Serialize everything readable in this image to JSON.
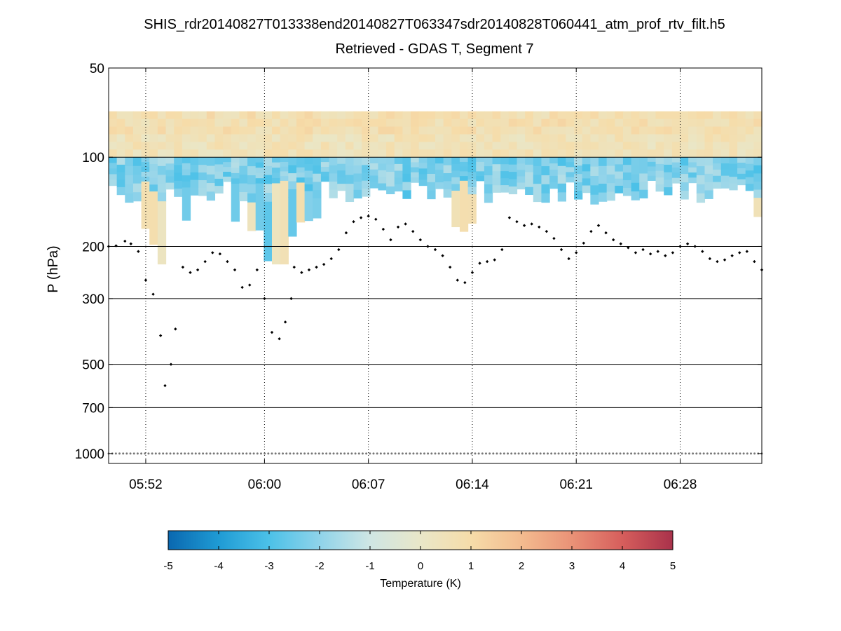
{
  "chart_data": {
    "type": "heatmap",
    "title": "SHIS_rdr20140827T013338end20140827T063347sdr20140828T060441_atm_prof_rtv_filt.h5",
    "subtitle": "Retrieved - GDAS T, Segment 7",
    "ylabel": "P (hPa)",
    "y_scale": "log",
    "y_reversed": true,
    "ylim_hpa": [
      50,
      1080
    ],
    "y_ticks": [
      50,
      100,
      200,
      300,
      500,
      700,
      1000
    ],
    "y_tick_labels": [
      "50",
      "100",
      "200",
      "300",
      "500",
      "700",
      "1000"
    ],
    "y_gridlines_hpa": [
      100,
      200,
      300,
      500,
      700
    ],
    "xlim_minutes": [
      49.5,
      93.5
    ],
    "x_ticks_minutes": [
      52,
      60,
      67,
      74,
      81,
      88
    ],
    "x_tick_labels": [
      "05:52",
      "06:00",
      "06:07",
      "06:14",
      "06:21",
      "06:28"
    ],
    "x_gridlines": "dotted vertical at each time tick",
    "colorbar": {
      "label": "Temperature (K)",
      "range": [
        -5,
        5
      ],
      "ticks": [
        -5,
        -4,
        -3,
        -2,
        -1,
        0,
        1,
        2,
        3,
        4,
        5
      ],
      "colors": [
        "#0a68b0",
        "#1f9bd4",
        "#4cc1e8",
        "#8fd3ea",
        "#cfe6e4",
        "#e9e7c8",
        "#f6dca9",
        "#f3bb8f",
        "#ea9277",
        "#d65e5c",
        "#a9324b"
      ]
    },
    "heatmap_layers": [
      {
        "name": "upper warm band",
        "p_top_hpa": 70,
        "p_bottom_hpa": 100,
        "typical_value_k": 0.6,
        "range_k": [
          0.2,
          1.3
        ]
      },
      {
        "name": "cold band",
        "p_top_hpa": 100,
        "p_bottom_hpa": 140,
        "typical_value_k": -2.2,
        "range_k": [
          -3.2,
          -1.0
        ]
      },
      {
        "name": "scattered lower cells",
        "p_top_hpa": 140,
        "p_bottom_hpa": 230,
        "typical_value_k": 0.5,
        "range_k": [
          -3.0,
          1.5
        ]
      }
    ],
    "series": [
      {
        "name": "tropopause pressure (black markers)",
        "x_minutes": [
          49.5,
          50.0,
          50.6,
          51.0,
          51.5,
          52.0,
          52.5,
          53.0,
          53.3,
          53.7,
          54.0,
          54.5,
          55.0,
          55.5,
          56.0,
          56.5,
          57.0,
          57.5,
          58.0,
          58.5,
          59.0,
          59.5,
          60.0,
          60.5,
          61.0,
          61.4,
          61.8,
          62.0,
          62.5,
          63.0,
          63.5,
          64.0,
          64.5,
          65.0,
          65.5,
          66.0,
          66.5,
          67.0,
          67.5,
          68.0,
          68.5,
          69.0,
          69.5,
          70.0,
          70.5,
          71.0,
          71.5,
          72.0,
          72.5,
          73.0,
          73.5,
          74.0,
          74.5,
          75.0,
          75.5,
          76.0,
          76.5,
          77.0,
          77.5,
          78.0,
          78.5,
          79.0,
          79.5,
          80.0,
          80.5,
          81.0,
          81.5,
          82.0,
          82.5,
          83.0,
          83.5,
          84.0,
          84.5,
          85.0,
          85.5,
          86.0,
          86.5,
          87.0,
          87.5,
          88.0,
          88.5,
          89.0,
          89.5,
          90.0,
          90.5,
          91.0,
          91.5,
          92.0,
          92.5,
          93.0,
          93.5
        ],
        "pressure_hpa": [
          200,
          199,
          192,
          196,
          208,
          260,
          290,
          400,
          590,
          500,
          380,
          235,
          245,
          240,
          225,
          210,
          212,
          225,
          240,
          275,
          270,
          240,
          300,
          390,
          410,
          360,
          300,
          235,
          245,
          240,
          235,
          230,
          220,
          205,
          180,
          165,
          160,
          158,
          162,
          175,
          190,
          172,
          168,
          178,
          190,
          200,
          205,
          215,
          235,
          260,
          265,
          245,
          228,
          225,
          222,
          205,
          160,
          165,
          170,
          168,
          172,
          178,
          188,
          205,
          220,
          210,
          195,
          178,
          170,
          180,
          190,
          196,
          202,
          210,
          205,
          212,
          208,
          215,
          210,
          200,
          196,
          200,
          208,
          220,
          225,
          222,
          215,
          210,
          208,
          225,
          240
        ]
      },
      {
        "name": "surface pressure (gray markers)",
        "x_minutes": [
          49.5,
          93.5
        ],
        "pressure_hpa": [
          1000,
          1000
        ]
      }
    ]
  }
}
